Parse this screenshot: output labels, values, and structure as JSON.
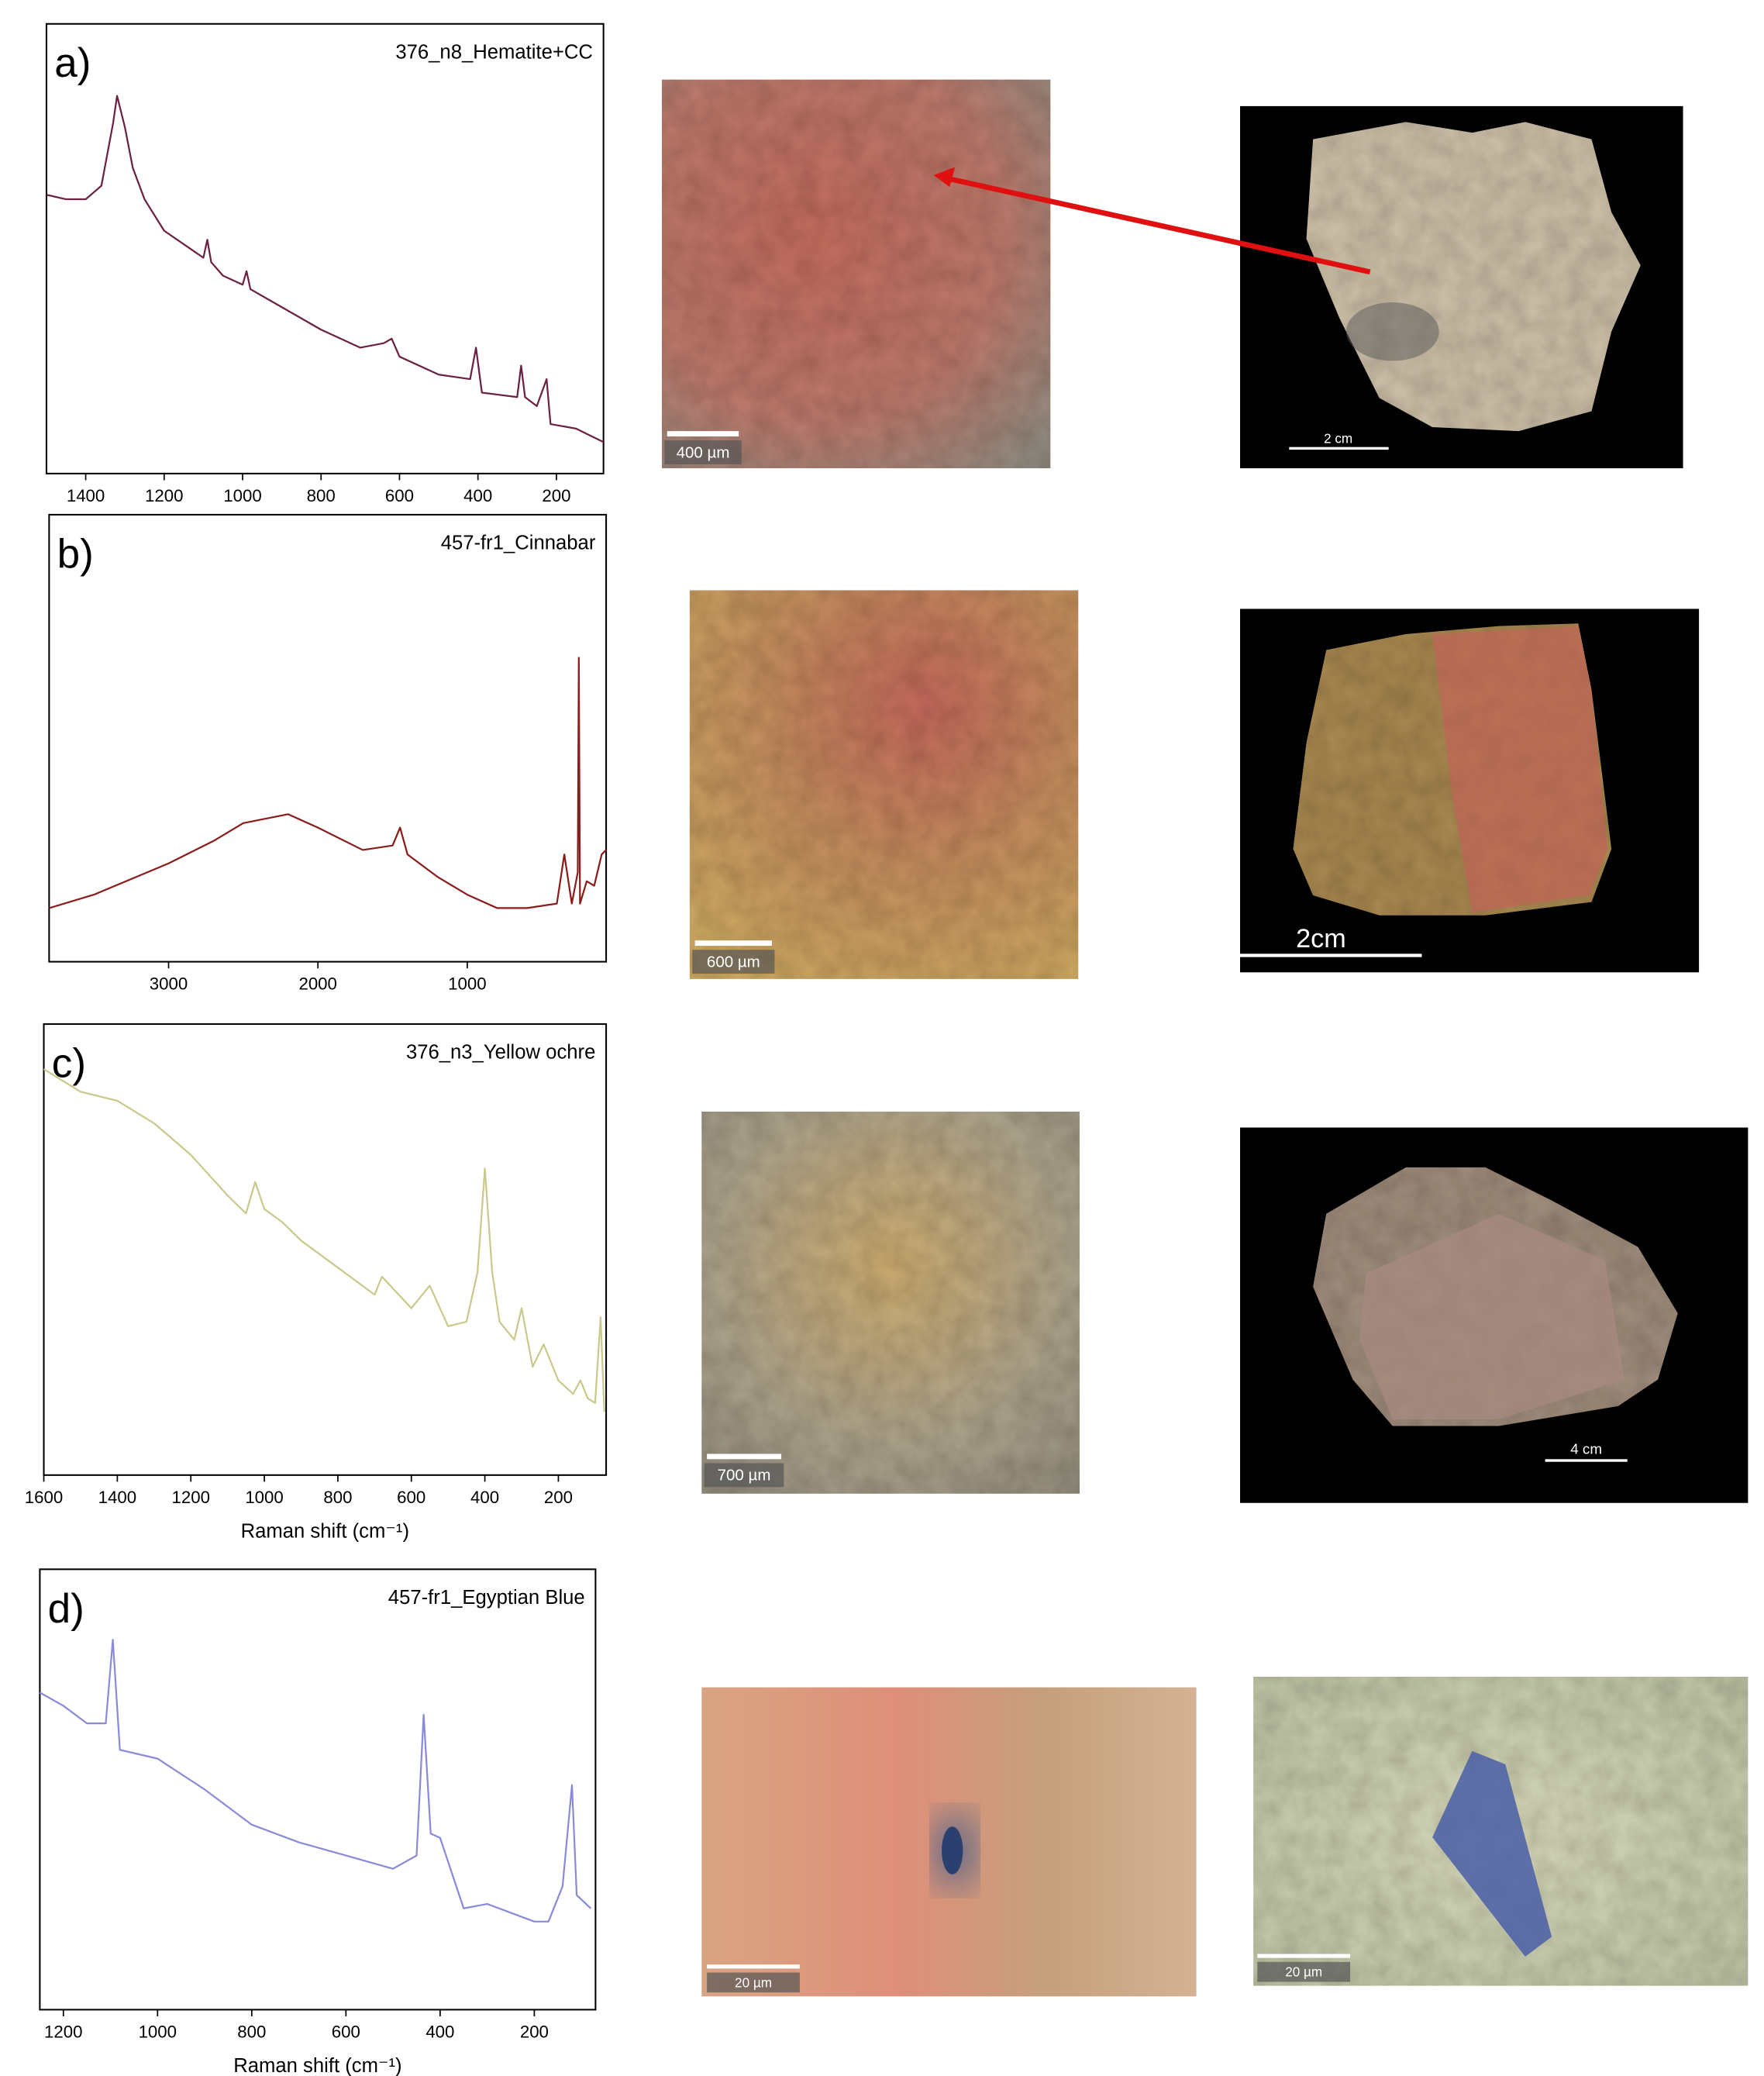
{
  "chart_data": [
    {
      "type": "line",
      "panel_label": "a)",
      "title": "376_n8_Hematite+CC",
      "color": "#6b2142",
      "xlim": [
        1500,
        80
      ],
      "ylim": [
        0,
        100
      ],
      "xticks": [
        1400,
        1200,
        1000,
        800,
        600,
        400,
        200
      ],
      "x": [
        1500,
        1450,
        1400,
        1360,
        1330,
        1320,
        1300,
        1280,
        1250,
        1200,
        1150,
        1100,
        1090,
        1080,
        1050,
        1000,
        990,
        980,
        900,
        800,
        700,
        640,
        620,
        600,
        500,
        420,
        405,
        390,
        300,
        290,
        280,
        250,
        225,
        215,
        150,
        80
      ],
      "values": [
        62,
        61,
        61,
        64,
        78,
        84,
        77,
        68,
        61,
        54,
        51,
        48,
        52,
        47,
        44,
        42,
        45,
        41,
        37,
        32,
        28,
        29,
        30,
        26,
        22,
        21,
        28,
        18,
        17,
        24,
        17,
        15,
        21,
        11,
        10,
        7
      ]
    },
    {
      "type": "line",
      "panel_label": "b)",
      "title": "457-fr1_Cinnabar",
      "color": "#8b1c1c",
      "xlim": [
        3800,
        70
      ],
      "ylim": [
        0,
        100
      ],
      "xticks": [
        3000,
        2000,
        1000
      ],
      "x": [
        3800,
        3500,
        3000,
        2700,
        2500,
        2200,
        2000,
        1700,
        1500,
        1450,
        1400,
        1200,
        1000,
        800,
        600,
        400,
        350,
        300,
        260,
        253,
        245,
        200,
        150,
        100,
        70
      ],
      "values": [
        12,
        15,
        22,
        27,
        31,
        33,
        30,
        25,
        26,
        30,
        24,
        19,
        15,
        12,
        12,
        13,
        24,
        13,
        20,
        68,
        13,
        18,
        17,
        24,
        25
      ]
    },
    {
      "type": "line",
      "panel_label": "c)",
      "title": "376_n3_Yellow ochre",
      "xlabel": "Raman shift (cm⁻¹)",
      "color": "#c9c98c",
      "xlim": [
        1600,
        70
      ],
      "ylim": [
        0,
        100
      ],
      "xticks": [
        1600,
        1400,
        1200,
        1000,
        800,
        600,
        400,
        200
      ],
      "x": [
        1600,
        1500,
        1400,
        1300,
        1200,
        1100,
        1050,
        1025,
        1000,
        950,
        900,
        800,
        700,
        680,
        600,
        550,
        500,
        450,
        420,
        400,
        380,
        360,
        320,
        300,
        270,
        240,
        200,
        160,
        140,
        120,
        100,
        85,
        75
      ],
      "values": [
        90,
        85,
        83,
        78,
        71,
        62,
        58,
        65,
        59,
        56,
        52,
        46,
        40,
        44,
        37,
        42,
        33,
        34,
        45,
        68,
        45,
        34,
        30,
        37,
        24,
        29,
        21,
        18,
        21,
        17,
        16,
        35,
        14
      ]
    },
    {
      "type": "line",
      "panel_label": "d)",
      "title": "457-fr1_Egyptian Blue",
      "xlabel": "Raman shift (cm⁻¹)",
      "color": "#8a8ad8",
      "xlim": [
        1250,
        70
      ],
      "ylim": [
        0,
        100
      ],
      "xticks": [
        1200,
        1000,
        800,
        600,
        400,
        200
      ],
      "x": [
        1250,
        1200,
        1150,
        1110,
        1095,
        1080,
        1000,
        900,
        800,
        700,
        600,
        500,
        450,
        435,
        420,
        400,
        350,
        300,
        200,
        170,
        140,
        120,
        110,
        80
      ],
      "values": [
        72,
        69,
        65,
        65,
        84,
        59,
        57,
        50,
        42,
        38,
        35,
        32,
        35,
        67,
        40,
        39,
        23,
        24,
        20,
        20,
        28,
        51,
        26,
        23
      ]
    }
  ],
  "images": [
    {
      "scale_label": "400 µm"
    },
    {
      "scale_label": "2 cm"
    },
    {
      "scale_label": "600 µm"
    },
    {
      "scale_label": "2cm"
    },
    {
      "scale_label": "700 µm"
    },
    {
      "scale_label": "4 cm"
    },
    {
      "scale_label": "20 µm"
    },
    {
      "scale_label": "20 µm"
    }
  ]
}
